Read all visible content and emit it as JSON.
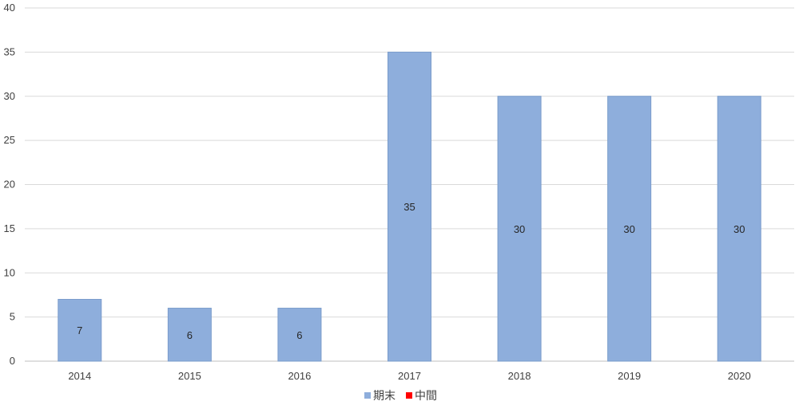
{
  "chart_data": {
    "type": "bar",
    "categories": [
      "2014",
      "2015",
      "2016",
      "2017",
      "2018",
      "2019",
      "2020"
    ],
    "series": [
      {
        "name": "期末",
        "values": [
          7,
          6,
          6,
          35,
          30,
          30,
          30
        ],
        "color": "#8EAEDC"
      },
      {
        "name": "中間",
        "values": [
          0,
          0,
          0,
          0,
          0,
          0,
          0
        ],
        "color": "#FF0000"
      }
    ],
    "ylim": [
      0,
      40
    ],
    "yticks": [
      0,
      5,
      10,
      15,
      20,
      25,
      30,
      35,
      40
    ],
    "title": "",
    "xlabel": "",
    "ylabel": "",
    "grid": true,
    "legend": "bottom",
    "data_labels": true,
    "colors": {
      "grid": "#D9D9D9",
      "axis": "#BFBFBF",
      "bar_stroke": "#7A9CCB"
    }
  }
}
